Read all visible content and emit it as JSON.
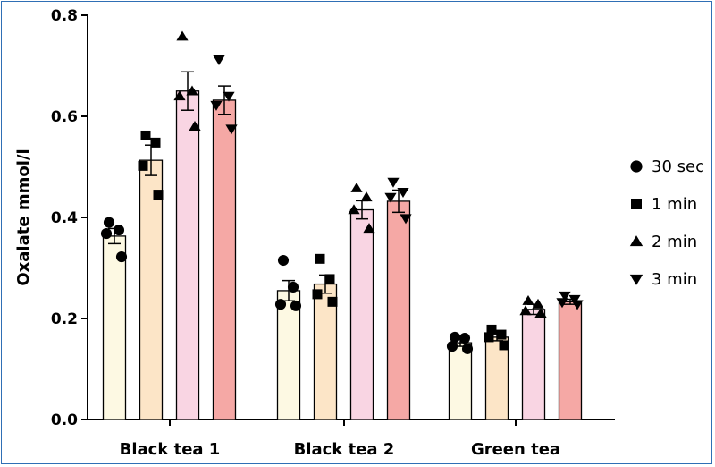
{
  "chart_data": {
    "type": "bar",
    "ylabel": "Oxalate mmol/l",
    "ylim": [
      0,
      0.8
    ],
    "yticks": [
      "0.0",
      "0.2",
      "0.4",
      "0.6",
      "0.8"
    ],
    "categories": [
      "Black tea 1",
      "Black tea 2",
      "Green tea"
    ],
    "legend_position": "right",
    "series": [
      {
        "name": "30 sec",
        "marker": "circle",
        "color": "#fdf9e3",
        "values": [
          0.363,
          0.255,
          0.152
        ],
        "sem": [
          0.015,
          0.02,
          0.007
        ],
        "points": [
          [
            0.39,
            0.375,
            0.368,
            0.322
          ],
          [
            0.315,
            0.262,
            0.228,
            0.225
          ],
          [
            0.163,
            0.161,
            0.145,
            0.14
          ]
        ]
      },
      {
        "name": "1 min",
        "marker": "square",
        "color": "#fce5c7",
        "values": [
          0.513,
          0.268,
          0.163
        ],
        "sem": [
          0.03,
          0.018,
          0.007
        ],
        "points": [
          [
            0.562,
            0.548,
            0.502,
            0.445
          ],
          [
            0.318,
            0.278,
            0.248,
            0.233
          ],
          [
            0.178,
            0.168,
            0.163,
            0.147
          ]
        ]
      },
      {
        "name": "2 min",
        "marker": "triangle-up",
        "color": "#f9d5e3",
        "values": [
          0.65,
          0.415,
          0.218
        ],
        "sem": [
          0.038,
          0.018,
          0.01
        ],
        "points": [
          [
            0.758,
            0.65,
            0.64,
            0.58
          ],
          [
            0.458,
            0.44,
            0.415,
            0.378
          ],
          [
            0.235,
            0.228,
            0.215,
            0.21
          ]
        ]
      },
      {
        "name": "3 min",
        "marker": "triangle-down",
        "color": "#f5a8a5",
        "values": [
          0.632,
          0.432,
          0.233
        ],
        "sem": [
          0.028,
          0.022,
          0.005
        ],
        "points": [
          [
            0.712,
            0.64,
            0.622,
            0.575
          ],
          [
            0.47,
            0.45,
            0.44,
            0.398
          ],
          [
            0.245,
            0.238,
            0.232,
            0.228
          ]
        ]
      }
    ]
  }
}
